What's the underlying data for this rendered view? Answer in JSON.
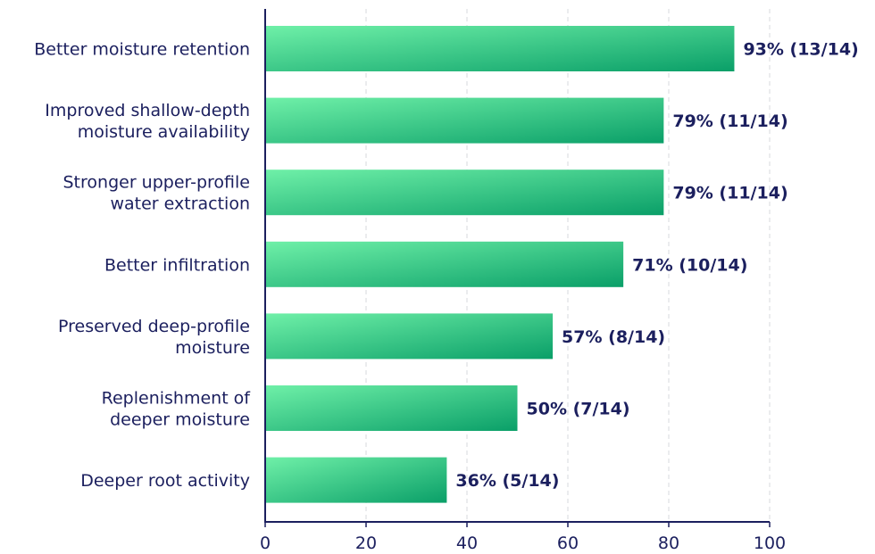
{
  "chart_data": {
    "type": "bar",
    "orientation": "horizontal",
    "categories": [
      [
        "Better moisture retention"
      ],
      [
        "Improved shallow-depth",
        "moisture availability"
      ],
      [
        "Stronger upper-profile",
        "water extraction"
      ],
      [
        "Better infiltration"
      ],
      [
        "Preserved deep-profile",
        "moisture"
      ],
      [
        "Replenishment of",
        "deeper moisture"
      ],
      [
        "Deeper root activity"
      ]
    ],
    "values": [
      93,
      79,
      79,
      71,
      57,
      50,
      36
    ],
    "value_labels": [
      "93% (13/14)",
      "79% (11/14)",
      "79% (11/14)",
      "71% (10/14)",
      "57% (8/14)",
      "50% (7/14)",
      "36% (5/14)"
    ],
    "xticks": [
      0,
      20,
      40,
      60,
      80,
      100
    ],
    "xlim": [
      0,
      100
    ],
    "grid": true,
    "colors": {
      "bar_start": "#6ff0a8",
      "bar_end": "#0a9f68",
      "text": "#1b1f5e",
      "axis": "#1b1f5e",
      "grid": "#d7d9de"
    }
  }
}
